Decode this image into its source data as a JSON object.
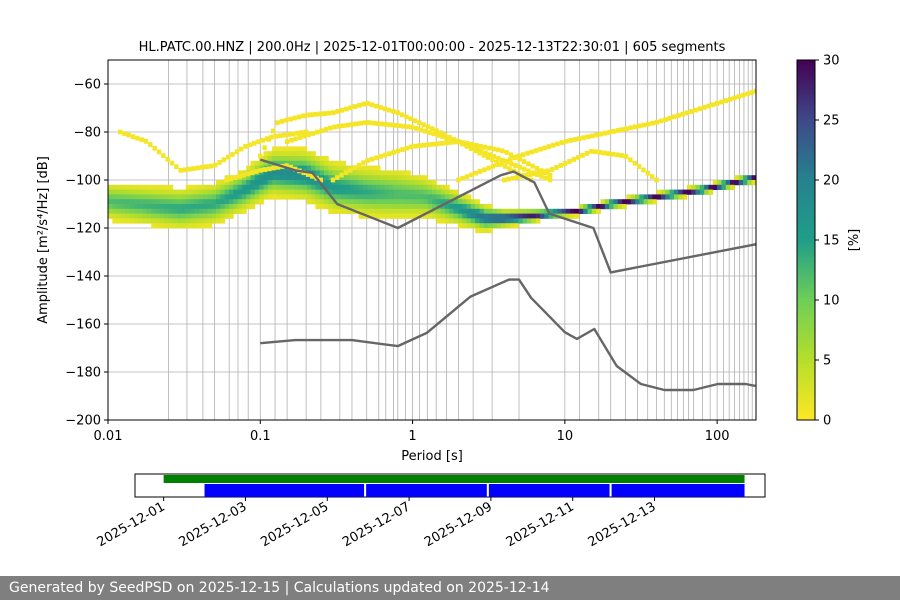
{
  "chart_data": [
    {
      "type": "heatmap",
      "title": "HL.PATC.00.HNZ | 200.0Hz | 2025-12-01T00:00:00 - 2025-12-13T22:30:01 | 605 segments",
      "xlabel": "Period [s]",
      "ylabel": "Amplitude [m²/s⁴/Hz] [dB]",
      "xscale": "log",
      "xlim": [
        0.01,
        180
      ],
      "ylim": [
        -200,
        -50
      ],
      "xticks": [
        0.01,
        0.1,
        1,
        10,
        100
      ],
      "xtick_labels": [
        "0.01",
        "0.1",
        "1",
        "10",
        "100"
      ],
      "yticks": [
        -200,
        -180,
        -160,
        -140,
        -120,
        -100,
        -80,
        -60
      ],
      "ytick_labels": [
        "−200",
        "−180",
        "−160",
        "−140",
        "−120",
        "−100",
        "−80",
        "−60"
      ],
      "grid": true,
      "grid_periods": [
        0.025,
        0.033,
        0.042,
        0.05,
        0.0625,
        0.0714,
        0.0833,
        0.1,
        0.125,
        0.15,
        0.2,
        0.25,
        0.333,
        0.4,
        0.5,
        0.6,
        0.667,
        0.75,
        0.8,
        0.9,
        1.0,
        1.11,
        1.25,
        1.43,
        1.67,
        2.0,
        2.5,
        3.33,
        5.0,
        10,
        12.5,
        16.7,
        20,
        25,
        30,
        35,
        40,
        45,
        50,
        55,
        60,
        65,
        70,
        80,
        90,
        100,
        110,
        120,
        130,
        140,
        150,
        160,
        170
      ],
      "colorbar": {
        "label": "[%]",
        "range": [
          0,
          30
        ],
        "ticks": [
          0,
          5,
          10,
          15,
          20,
          25,
          30
        ],
        "colormap": "viridis_r"
      },
      "density_bands": [
        {
          "period": [
            0.01,
            0.03,
            0.05,
            0.08,
            0.12,
            0.2,
            0.3,
            0.5,
            0.8,
            1.2,
            2,
            3,
            4,
            6,
            8,
            12,
            20,
            40,
            80,
            180
          ],
          "mode": [
            -109,
            -112,
            -110,
            -104,
            -97,
            -98,
            -103,
            -105,
            -106,
            -107,
            -112,
            -116,
            -116,
            -115,
            -114,
            -113,
            -110,
            -107,
            -104,
            -99
          ],
          "halfwidth_db": [
            9,
            10,
            10,
            10,
            11,
            12,
            12,
            12,
            12,
            10,
            8,
            6,
            4,
            3,
            2,
            2,
            2,
            2,
            2,
            2
          ],
          "peak_percent": [
            12,
            14,
            14,
            16,
            18,
            18,
            16,
            14,
            12,
            12,
            16,
            22,
            26,
            28,
            30,
            30,
            30,
            30,
            30,
            30
          ]
        }
      ],
      "sparse_arcs": [
        {
          "period": [
            0.012,
            0.018,
            0.03,
            0.05,
            0.08,
            0.12,
            0.2
          ],
          "db": [
            -80,
            -84,
            -96,
            -94,
            -86,
            -82,
            -80
          ]
        },
        {
          "period": [
            0.1,
            0.13,
            0.2,
            0.3,
            0.5,
            0.8,
            1.5,
            3,
            6
          ],
          "db": [
            -90,
            -76,
            -73,
            -72,
            -68,
            -72,
            -80,
            -90,
            -100
          ]
        },
        {
          "period": [
            0.15,
            0.3,
            0.5,
            1.0,
            2.0,
            4.0,
            8.0
          ],
          "db": [
            -84,
            -78,
            -76,
            -78,
            -84,
            -92,
            -100
          ]
        },
        {
          "period": [
            0.3,
            0.5,
            1,
            2,
            4,
            8
          ],
          "db": [
            -100,
            -92,
            -86,
            -84,
            -88,
            -98
          ]
        },
        {
          "period": [
            2,
            5,
            10,
            20,
            40,
            80,
            180
          ],
          "db": [
            -100,
            -90,
            -84,
            -80,
            -76,
            -70,
            -63
          ]
        },
        {
          "period": [
            4,
            8,
            15,
            25,
            40
          ],
          "db": [
            -100,
            -96,
            -88,
            -90,
            -100
          ]
        },
        {
          "period": [
            0.06,
            0.1,
            0.15,
            0.25
          ],
          "db": [
            -100,
            -96,
            -94,
            -100
          ]
        }
      ],
      "series": [
        {
          "name": "",
          "color": "#666666",
          "x": [
            0.1,
            0.17,
            0.22,
            0.32,
            0.8,
            3.8,
            4.6,
            6.3,
            7.9,
            15.4,
            20,
            200
          ],
          "y": [
            -91.5,
            -96,
            -97,
            -110,
            -120,
            -98,
            -96.5,
            -101,
            -114,
            -120,
            -138.5,
            -126.2
          ]
        },
        {
          "name": "",
          "color": "#666666",
          "x": [
            0.1,
            0.17,
            0.4,
            0.8,
            1.24,
            2.4,
            4.3,
            5,
            6,
            10,
            12,
            15.6,
            21.9,
            31.6,
            45,
            70,
            101,
            154,
            178
          ],
          "y": [
            -168,
            -166.7,
            -166.7,
            -169.2,
            -163.7,
            -148.6,
            -141.5,
            -141.5,
            -149.1,
            -163.4,
            -166.2,
            -162.1,
            -177.5,
            -185,
            -187.5,
            -187.5,
            -185,
            -185,
            -185.8
          ]
        }
      ]
    },
    {
      "type": "timeline",
      "x_labels": [
        "2025-12-01",
        "2025-12-03",
        "2025-12-05",
        "2025-12-07",
        "2025-12-09",
        "2025-12-11",
        "2025-12-13"
      ],
      "xlim_days": [
        -0.7,
        14.7
      ],
      "green_bar_days": [
        0.0,
        14.2
      ],
      "blue_segments_days": [
        [
          1.0,
          4.9
        ],
        [
          4.95,
          7.9
        ],
        [
          7.95,
          10.9
        ],
        [
          10.95,
          14.2
        ]
      ],
      "colors": {
        "green": "#008000",
        "blue": "#0000ff"
      }
    }
  ],
  "footer": "Generated by SeedPSD on 2025-12-15 | Calculations updated on 2025-12-14"
}
